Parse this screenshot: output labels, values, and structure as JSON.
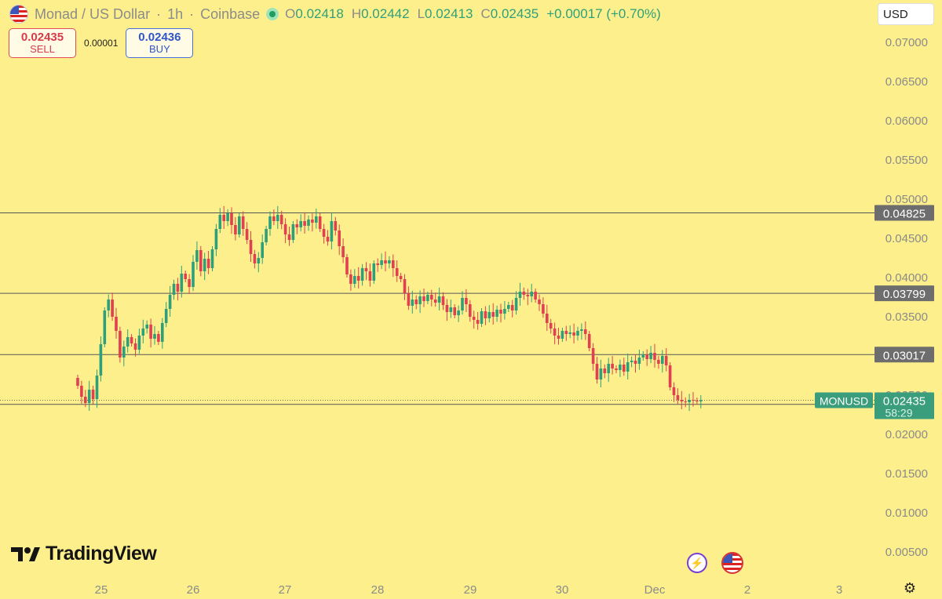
{
  "header": {
    "title": "Monad / US Dollar",
    "interval": "1h",
    "exchange": "Coinbase",
    "sep": "·",
    "ohlc": [
      {
        "label": "O",
        "value": "0.02418"
      },
      {
        "label": "H",
        "value": "0.02442"
      },
      {
        "label": "L",
        "value": "0.02413"
      },
      {
        "label": "C",
        "value": "0.02435"
      }
    ],
    "change": "+0.00017 (+0.70%)"
  },
  "trade": {
    "sell_price": "0.02435",
    "sell_label": "SELL",
    "spread": "0.00001",
    "buy_price": "0.02436",
    "buy_label": "BUY"
  },
  "currency": "USD",
  "brand": "TradingView",
  "colors": {
    "background": "#fdf08c",
    "up": "#2e9f7b",
    "down": "#e0404f",
    "axis_text": "#8a8a8a",
    "line": "#555555",
    "tag": "#6d6d6d",
    "price_tag": "#3a9d7c"
  },
  "icons": [
    "us-flag-icon",
    "live-dot-icon",
    "chevron-down-icon",
    "tradingview-logo-icon",
    "lightning-icon",
    "us-flag-icon",
    "gear-icon"
  ],
  "chart_data": {
    "type": "candlestick",
    "symbol": "MONUSD",
    "interval": "1h",
    "y_ticks": [
      "0.00500",
      "0.01000",
      "0.01500",
      "0.02000",
      "0.02500",
      "0.03000",
      "0.03500",
      "0.04000",
      "0.04500",
      "0.05000",
      "0.05500",
      "0.06000",
      "0.06500",
      "0.07000"
    ],
    "x_ticks": [
      "25",
      "26",
      "27",
      "28",
      "29",
      "30",
      "Dec",
      "2",
      "3"
    ],
    "ylim": [
      0.0013,
      0.0713
    ],
    "horizontal_lines": [
      {
        "value": 0.04825,
        "label": "0.04825"
      },
      {
        "value": 0.03799,
        "label": "0.03799"
      },
      {
        "value": 0.03017,
        "label": "0.03017"
      },
      {
        "value": 0.02382,
        "label": "0.02382"
      }
    ],
    "last_price": {
      "value": 0.02435,
      "label": "0.02435",
      "symbol_label": "MONUSD",
      "countdown": "58:29"
    },
    "grid": false,
    "start_time": "Nov 24 19:00",
    "hours_visible": 216,
    "closes": [
      0.0262,
      0.0248,
      0.024,
      0.0257,
      0.0245,
      0.0275,
      0.0315,
      0.0358,
      0.0372,
      0.035,
      0.0332,
      0.0298,
      0.0312,
      0.0324,
      0.0316,
      0.0308,
      0.0326,
      0.0335,
      0.034,
      0.0322,
      0.0328,
      0.0318,
      0.0342,
      0.036,
      0.0378,
      0.0392,
      0.0382,
      0.0405,
      0.0398,
      0.0388,
      0.042,
      0.0435,
      0.0408,
      0.0424,
      0.0412,
      0.0436,
      0.0462,
      0.048,
      0.0472,
      0.0482,
      0.0467,
      0.0455,
      0.0478,
      0.0462,
      0.0448,
      0.043,
      0.0418,
      0.0425,
      0.0445,
      0.0462,
      0.0478,
      0.0472,
      0.048,
      0.0468,
      0.0455,
      0.0448,
      0.0468,
      0.0464,
      0.0472,
      0.0466,
      0.0474,
      0.047,
      0.0478,
      0.0462,
      0.0452,
      0.0446,
      0.0472,
      0.046,
      0.044,
      0.0426,
      0.0404,
      0.0392,
      0.0402,
      0.0396,
      0.0412,
      0.0408,
      0.0396,
      0.0418,
      0.0416,
      0.0422,
      0.0418,
      0.0422,
      0.0412,
      0.0402,
      0.0398,
      0.038,
      0.0364,
      0.0372,
      0.0366,
      0.0376,
      0.037,
      0.0378,
      0.0372,
      0.0368,
      0.0376,
      0.0365,
      0.0356,
      0.0362,
      0.0352,
      0.0358,
      0.0374,
      0.0366,
      0.035,
      0.0346,
      0.0341,
      0.0357,
      0.0348,
      0.0356,
      0.035,
      0.0359,
      0.0354,
      0.036,
      0.0365,
      0.0358,
      0.0374,
      0.0382,
      0.0378,
      0.0376,
      0.0382,
      0.0372,
      0.0366,
      0.0354,
      0.0342,
      0.0335,
      0.0326,
      0.0322,
      0.0332,
      0.0328,
      0.033,
      0.0326,
      0.0332,
      0.0334,
      0.0328,
      0.031,
      0.029,
      0.027,
      0.0284,
      0.0278,
      0.029,
      0.0284,
      0.0282,
      0.0289,
      0.028,
      0.0292,
      0.0294,
      0.029,
      0.0298,
      0.0302,
      0.0296,
      0.0304,
      0.0295,
      0.029,
      0.03,
      0.0288,
      0.026,
      0.025,
      0.0244,
      0.0242,
      0.0241,
      0.0244,
      0.0243,
      0.0242,
      0.02435
    ]
  }
}
